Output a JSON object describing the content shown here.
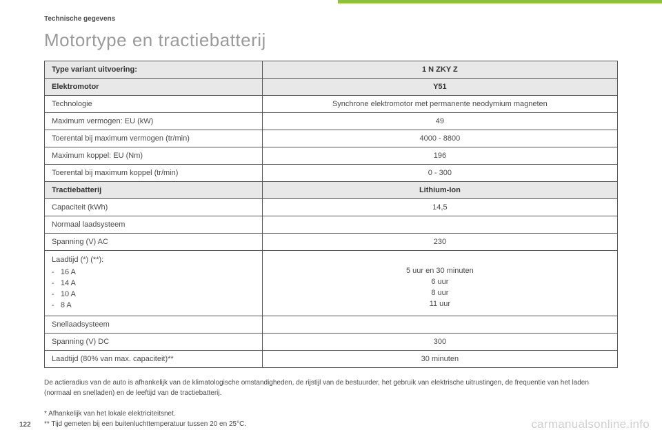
{
  "section_label": "Technische gegevens",
  "title": "Motortype en tractiebatterij",
  "page_number": "122",
  "watermark": "carmanualsonline.info",
  "header_row": {
    "left": "Type variant uitvoering:",
    "right": "1 N ZKY Z"
  },
  "motor_header": {
    "left": "Elektromotor",
    "right": "Y51"
  },
  "motor_rows": [
    {
      "label": "Technologie",
      "value": "Synchrone elektromotor met permanente neodymium magneten"
    },
    {
      "label": "Maximum vermogen: EU (kW)",
      "value": "49"
    },
    {
      "label": "Toerental bij maximum vermogen (tr/min)",
      "value": "4000 - 8800"
    },
    {
      "label": "Maximum koppel: EU (Nm)",
      "value": "196"
    },
    {
      "label": "Toerental bij maximum koppel (tr/min)",
      "value": "0 - 300"
    }
  ],
  "battery_header": {
    "left": "Tractiebatterij",
    "right": "Lithium-Ion"
  },
  "battery_rows": {
    "cap_label": "Capaciteit (kWh)",
    "cap_value": "14,5",
    "normal_label": "Normaal laadsysteem",
    "normal_value": "",
    "volt_ac_label": "Spanning (V) AC",
    "volt_ac_value": "230",
    "charge_label": "Laadtijd (*) (**):",
    "charge_items": [
      "16 A",
      "14 A",
      "10 A",
      "8 A"
    ],
    "charge_values": [
      "5 uur en 30 minuten",
      "6 uur",
      "8 uur",
      "11 uur"
    ],
    "fast_label": "Snellaadsysteem",
    "fast_value": "",
    "volt_dc_label": "Spanning (V) DC",
    "volt_dc_value": "300",
    "charge80_label": "Laadtijd (80% van max. capaciteit)**",
    "charge80_value": "30 minuten"
  },
  "footnote_main": "De actieradius van de auto is afhankelijk van de klimatologische omstandigheden, de rijstijl van de bestuurder, het gebruik van elektrische uitrustingen, de frequentie van het laden (normaal en snelladen) en de leeftijd van de tractiebatterij.",
  "footnote_star": "* Afhankelijk van het lokale elektriciteitsnet.",
  "footnote_dstar": "** Tijd gemeten bij een buitenluchttemperatuur tussen 20 en 25°C.",
  "colors": {
    "accent": "#8fbf3f",
    "title": "#9a9a9a",
    "text": "#4a4a4a",
    "header_bg": "#e8e8e8",
    "border": "#555555",
    "watermark": "#cfcfcf"
  }
}
